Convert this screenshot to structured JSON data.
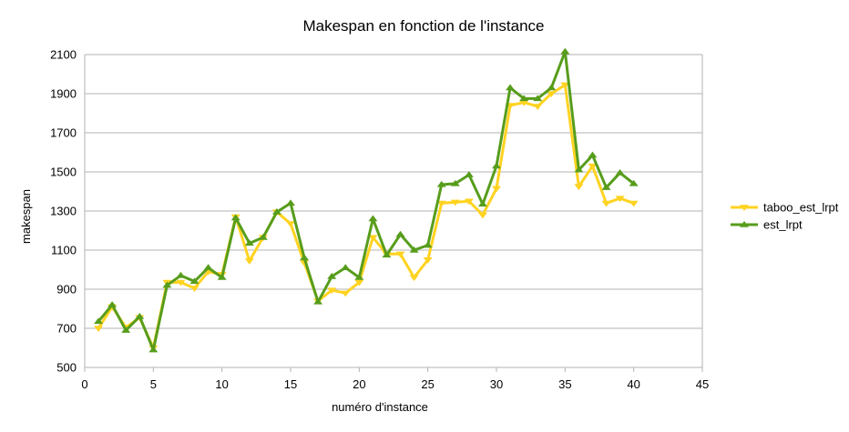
{
  "chart_data": {
    "type": "line",
    "title": "Makespan en fonction de l'instance",
    "xlabel": "numéro d'instance",
    "ylabel": "makespan",
    "xlim": [
      0,
      45
    ],
    "ylim": [
      500,
      2100
    ],
    "xticks": [
      0,
      5,
      10,
      15,
      20,
      25,
      30,
      35,
      40,
      45
    ],
    "yticks": [
      500,
      700,
      900,
      1100,
      1300,
      1500,
      1700,
      1900,
      2100
    ],
    "grid": true,
    "legend_position": "right",
    "x": [
      1,
      2,
      3,
      4,
      5,
      6,
      7,
      8,
      9,
      10,
      11,
      12,
      13,
      14,
      15,
      16,
      17,
      18,
      19,
      20,
      21,
      22,
      23,
      24,
      25,
      26,
      27,
      28,
      29,
      30,
      31,
      32,
      33,
      34,
      35,
      36,
      37,
      38,
      39,
      40
    ],
    "series": [
      {
        "name": "taboo_est_lrpt",
        "color": "#ffd320",
        "marker": "triangle-down",
        "values": [
          700,
          810,
          705,
          755,
          600,
          935,
          935,
          905,
          990,
          975,
          1270,
          1045,
          1165,
          1295,
          1235,
          1035,
          840,
          895,
          880,
          935,
          1165,
          1080,
          1080,
          960,
          1050,
          1340,
          1345,
          1350,
          1280,
          1415,
          1840,
          1855,
          1835,
          1900,
          1945,
          1425,
          1530,
          1340,
          1365,
          1340
        ]
      },
      {
        "name": "est_lrpt",
        "color": "#579d1c",
        "marker": "triangle-up",
        "values": [
          735,
          820,
          690,
          760,
          590,
          920,
          970,
          940,
          1010,
          960,
          1265,
          1135,
          1165,
          1295,
          1340,
          1060,
          835,
          965,
          1010,
          960,
          1260,
          1075,
          1180,
          1100,
          1125,
          1435,
          1440,
          1485,
          1335,
          1530,
          1930,
          1875,
          1875,
          1930,
          2115,
          1510,
          1585,
          1420,
          1495,
          1440
        ]
      }
    ]
  }
}
